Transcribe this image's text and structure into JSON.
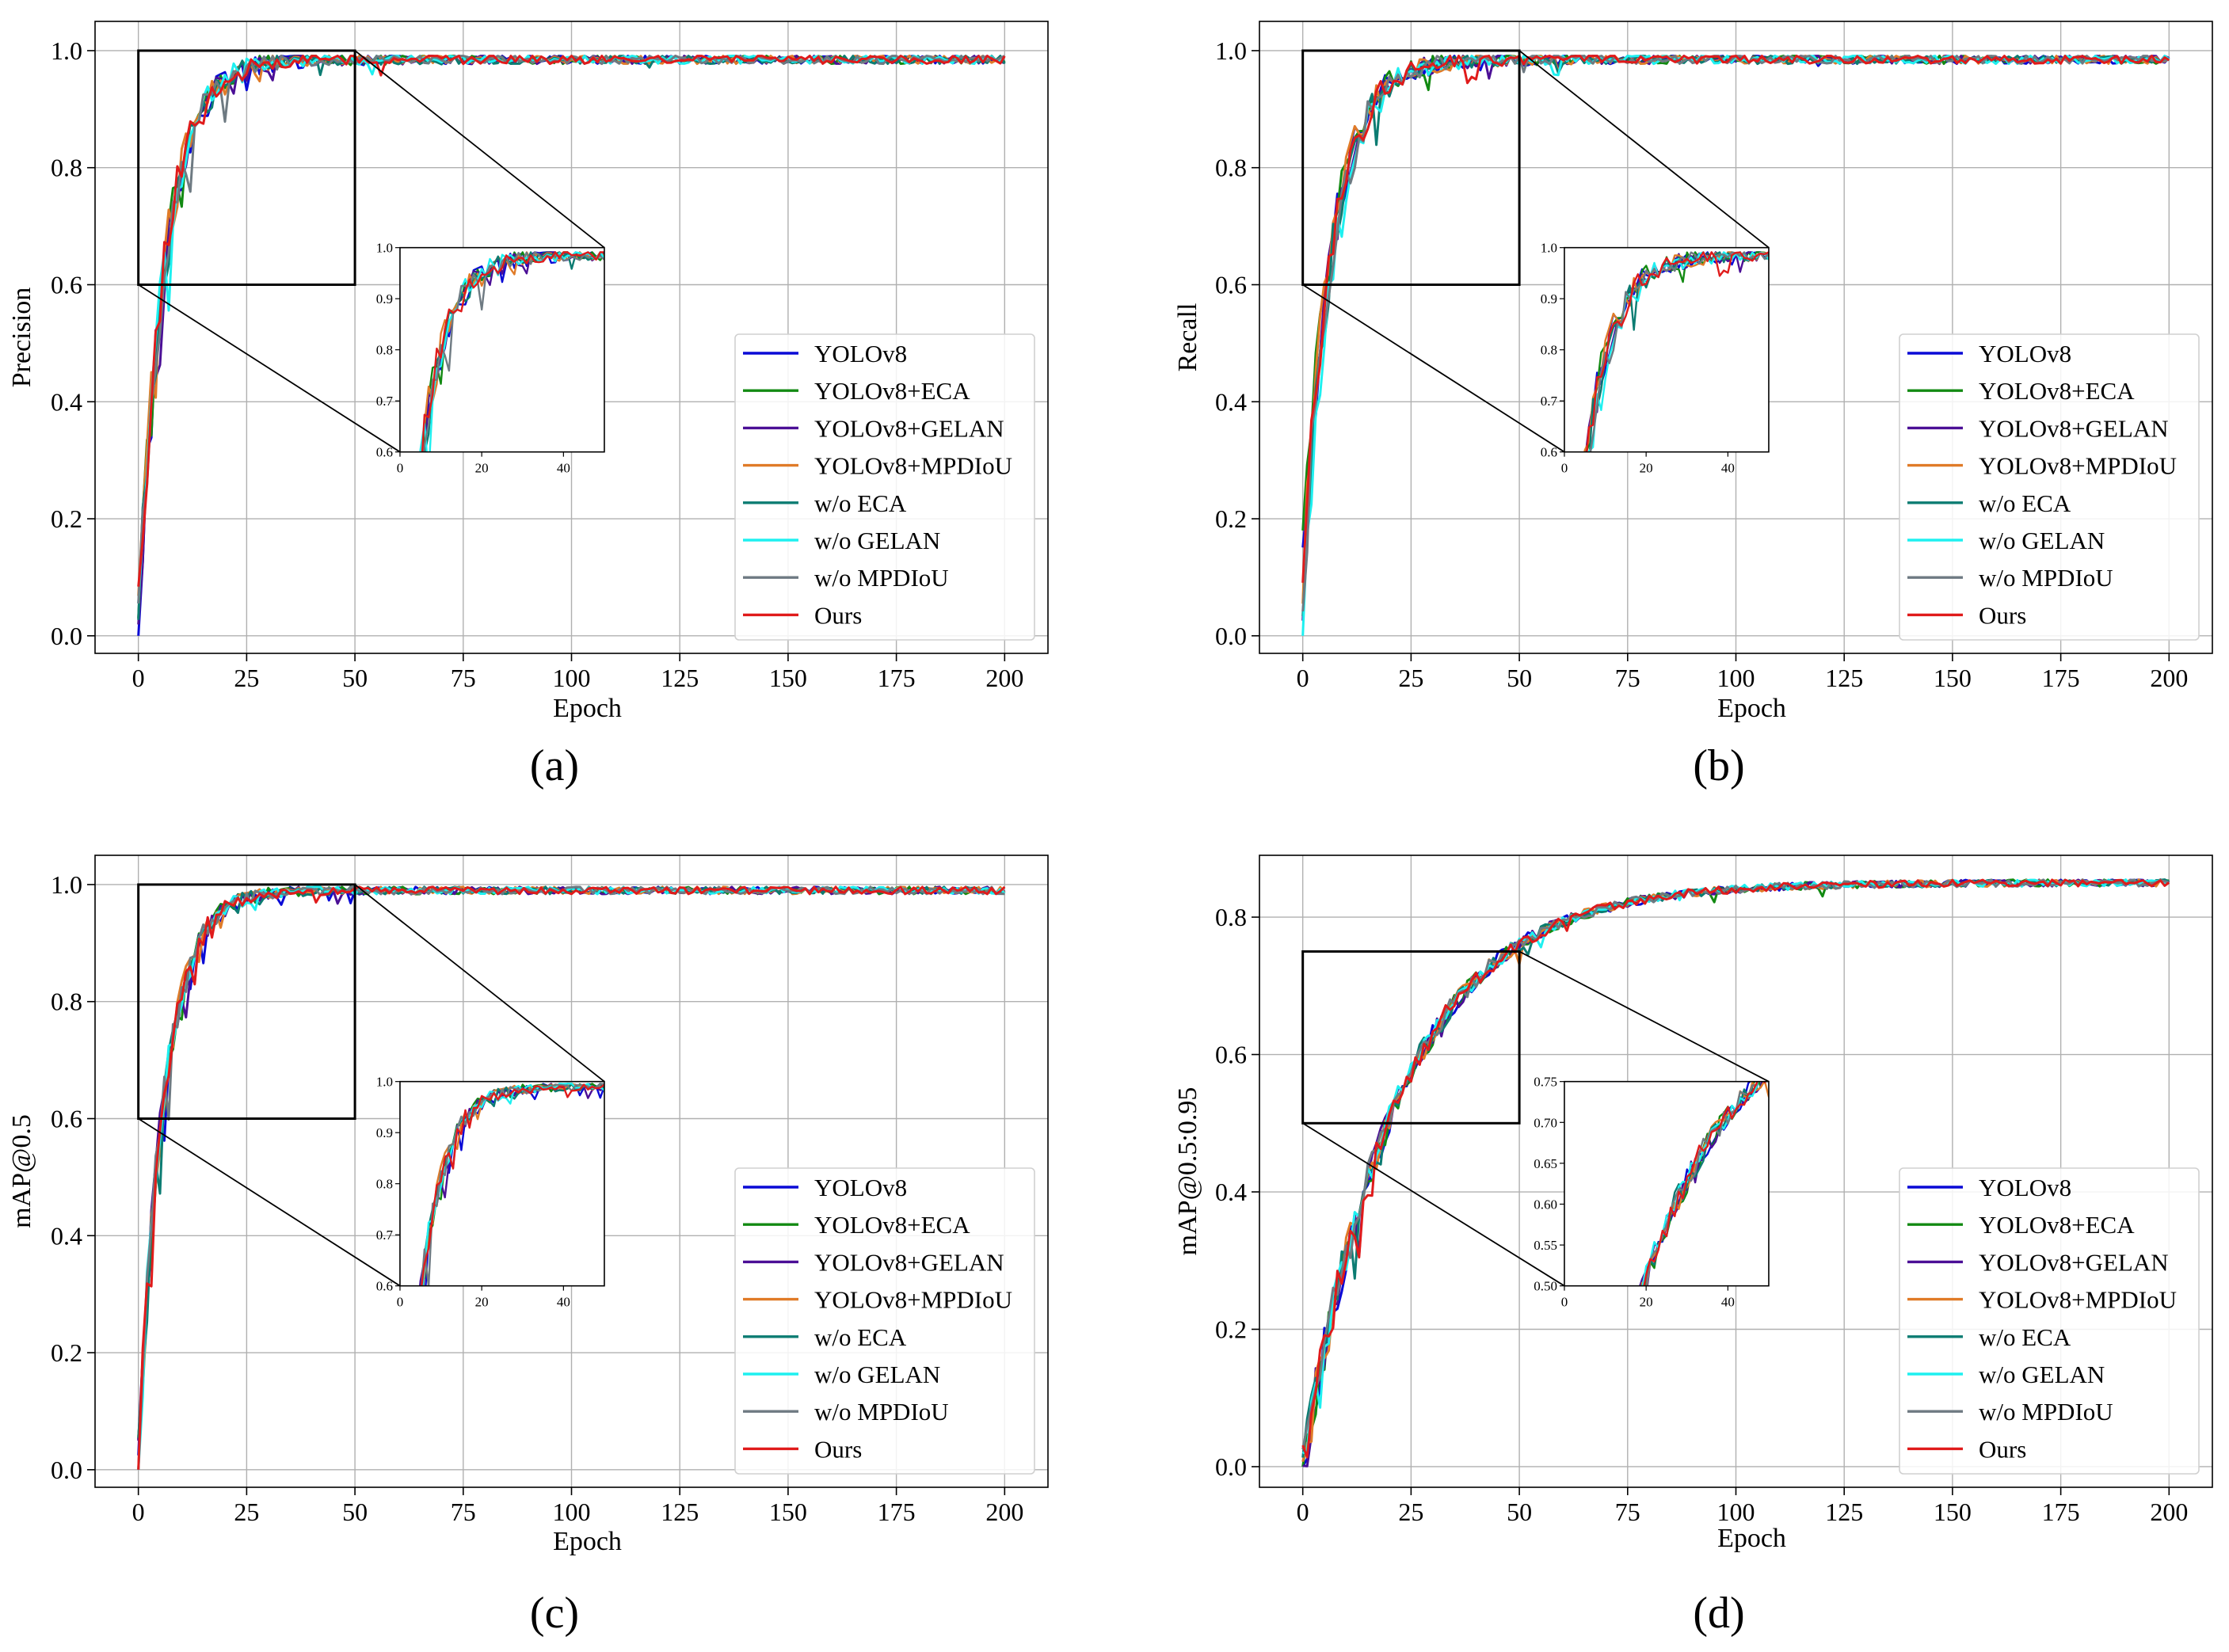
{
  "legend_entries": [
    "YOLOv8",
    "YOLOv8+ECA",
    "YOLOv8+GELAN",
    "YOLOv8+MPDIoU",
    "w/o ECA",
    "w/o GELAN",
    "w/o MPDIoU",
    "Ours"
  ],
  "series_colors": [
    "#0a0ad6",
    "#128a12",
    "#4b0f96",
    "#e07b28",
    "#0c7c72",
    "#1ef0f0",
    "#6e7a82",
    "#e01b1b"
  ],
  "chart_data": [
    {
      "id": "a",
      "type": "line",
      "caption": "(a)",
      "xlabel": "Epoch",
      "ylabel": "Precision",
      "xlim": [
        -10,
        210
      ],
      "ylim": [
        -0.03,
        1.05
      ],
      "xticks": [
        0,
        25,
        50,
        75,
        100,
        125,
        150,
        175,
        200
      ],
      "yticks": [
        0.0,
        0.2,
        0.4,
        0.6,
        0.8,
        1.0
      ],
      "ytick_labels": [
        "0.0",
        "0.2",
        "0.4",
        "0.6",
        "0.8",
        "1.0"
      ],
      "grid": true,
      "legend_loc": "lower-right",
      "zoom_region": {
        "x": [
          0,
          50
        ],
        "y": [
          0.6,
          1.0
        ]
      },
      "inset": {
        "xlim": [
          0,
          50
        ],
        "ylim": [
          0.6,
          1.0
        ],
        "xticks": [
          0,
          20,
          40
        ],
        "xtick_labels": [
          "0",
          "20",
          "40"
        ],
        "yticks": [
          0.6,
          0.7,
          0.8,
          0.9,
          1.0
        ],
        "ytick_labels": [
          "0.6",
          "0.7",
          "0.8",
          "0.9",
          "1.0"
        ]
      },
      "curve": {
        "start": 0.05,
        "plateau": 0.985,
        "k": 0.16,
        "noise": 0.03,
        "noise_decay": 16
      },
      "series": [
        {
          "name": "YOLOv8",
          "start": 0.02,
          "seed": 11
        },
        {
          "name": "YOLOv8+ECA",
          "start": 0.06,
          "seed": 12
        },
        {
          "name": "YOLOv8+GELAN",
          "start": 0.04,
          "seed": 13
        },
        {
          "name": "YOLOv8+MPDIoU",
          "start": 0.08,
          "seed": 14
        },
        {
          "name": "w/o ECA",
          "start": 0.03,
          "seed": 15
        },
        {
          "name": "w/o GELAN",
          "start": 0.05,
          "seed": 16
        },
        {
          "name": "w/o MPDIoU",
          "start": 0.04,
          "seed": 17
        },
        {
          "name": "Ours",
          "start": 0.06,
          "seed": 18
        }
      ]
    },
    {
      "id": "b",
      "type": "line",
      "caption": "(b)",
      "xlabel": "Epoch",
      "ylabel": "Recall",
      "xlim": [
        -10,
        210
      ],
      "ylim": [
        -0.03,
        1.05
      ],
      "xticks": [
        0,
        25,
        50,
        75,
        100,
        125,
        150,
        175,
        200
      ],
      "yticks": [
        0.0,
        0.2,
        0.4,
        0.6,
        0.8,
        1.0
      ],
      "ytick_labels": [
        "0.0",
        "0.2",
        "0.4",
        "0.6",
        "0.8",
        "1.0"
      ],
      "grid": true,
      "legend_loc": "lower-right",
      "zoom_region": {
        "x": [
          0,
          50
        ],
        "y": [
          0.6,
          1.0
        ]
      },
      "inset": {
        "xlim": [
          0,
          50
        ],
        "ylim": [
          0.6,
          1.0
        ],
        "xticks": [
          0,
          20,
          40
        ],
        "xtick_labels": [
          "0",
          "20",
          "40"
        ],
        "yticks": [
          0.6,
          0.7,
          0.8,
          0.9,
          1.0
        ],
        "ytick_labels": [
          "0.6",
          "0.7",
          "0.8",
          "0.9",
          "1.0"
        ]
      },
      "curve": {
        "start": 0.1,
        "plateau": 0.985,
        "k": 0.15,
        "noise": 0.03,
        "noise_decay": 16
      },
      "series": [
        {
          "name": "YOLOv8",
          "start": 0.1,
          "seed": 21
        },
        {
          "name": "YOLOv8+ECA",
          "start": 0.12,
          "seed": 22
        },
        {
          "name": "YOLOv8+GELAN",
          "start": 0.08,
          "seed": 23
        },
        {
          "name": "YOLOv8+MPDIoU",
          "start": 0.1,
          "seed": 24
        },
        {
          "name": "w/o ECA",
          "start": 0.07,
          "seed": 25
        },
        {
          "name": "w/o GELAN",
          "start": 0.02,
          "seed": 26
        },
        {
          "name": "w/o MPDIoU",
          "start": 0.06,
          "seed": 27
        },
        {
          "name": "Ours",
          "start": 0.1,
          "seed": 28
        }
      ]
    },
    {
      "id": "c",
      "type": "line",
      "caption": "(c)",
      "xlabel": "Epoch",
      "ylabel": "mAP@0.5",
      "xlim": [
        -10,
        210
      ],
      "ylim": [
        -0.03,
        1.05
      ],
      "xticks": [
        0,
        25,
        50,
        75,
        100,
        125,
        150,
        175,
        200
      ],
      "yticks": [
        0.0,
        0.2,
        0.4,
        0.6,
        0.8,
        1.0
      ],
      "ytick_labels": [
        "0.0",
        "0.2",
        "0.4",
        "0.6",
        "0.8",
        "1.0"
      ],
      "grid": true,
      "legend_loc": "lower-right",
      "zoom_region": {
        "x": [
          0,
          50
        ],
        "y": [
          0.6,
          1.0
        ]
      },
      "inset": {
        "xlim": [
          0,
          50
        ],
        "ylim": [
          0.6,
          1.0
        ],
        "xticks": [
          0,
          20,
          40
        ],
        "xtick_labels": [
          "0",
          "20",
          "40"
        ],
        "yticks": [
          0.6,
          0.7,
          0.8,
          0.9,
          1.0
        ],
        "ytick_labels": [
          "0.6",
          "0.7",
          "0.8",
          "0.9",
          "1.0"
        ]
      },
      "curve": {
        "start": 0.02,
        "plateau": 0.99,
        "k": 0.17,
        "noise": 0.025,
        "noise_decay": 12
      },
      "series": [
        {
          "name": "YOLOv8",
          "start": 0.01,
          "seed": 31
        },
        {
          "name": "YOLOv8+ECA",
          "start": 0.03,
          "seed": 32
        },
        {
          "name": "YOLOv8+GELAN",
          "start": 0.02,
          "seed": 33
        },
        {
          "name": "YOLOv8+MPDIoU",
          "start": 0.02,
          "seed": 34
        },
        {
          "name": "w/o ECA",
          "start": 0.01,
          "seed": 35
        },
        {
          "name": "w/o GELAN",
          "start": 0.02,
          "seed": 36
        },
        {
          "name": "w/o MPDIoU",
          "start": 0.02,
          "seed": 37
        },
        {
          "name": "Ours",
          "start": 0.02,
          "seed": 38
        }
      ]
    },
    {
      "id": "d",
      "type": "line",
      "caption": "(d)",
      "xlabel": "Epoch",
      "ylabel": "mAP@0.5:0.95",
      "xlim": [
        -10,
        210
      ],
      "ylim": [
        -0.03,
        0.89
      ],
      "xticks": [
        0,
        25,
        50,
        75,
        100,
        125,
        150,
        175,
        200
      ],
      "yticks": [
        0.0,
        0.2,
        0.4,
        0.6,
        0.8
      ],
      "ytick_labels": [
        "0.0",
        "0.2",
        "0.4",
        "0.6",
        "0.8"
      ],
      "grid": true,
      "legend_loc": "lower-right",
      "zoom_region": {
        "x": [
          0,
          50
        ],
        "y": [
          0.5,
          0.75
        ]
      },
      "inset": {
        "xlim": [
          0,
          50
        ],
        "ylim": [
          0.5,
          0.75
        ],
        "xticks": [
          0,
          20,
          40
        ],
        "xtick_labels": [
          "0",
          "20",
          "40"
        ],
        "yticks": [
          0.5,
          0.55,
          0.6,
          0.65,
          0.7,
          0.75
        ],
        "ytick_labels": [
          "0.50",
          "0.55",
          "0.60",
          "0.65",
          "0.70",
          "0.75"
        ]
      },
      "curve": {
        "start": 0.0,
        "plateau": 0.85,
        "k": 0.045,
        "noise": 0.02,
        "noise_decay": 25
      },
      "series": [
        {
          "name": "YOLOv8",
          "start": 0.0,
          "seed": 41
        },
        {
          "name": "YOLOv8+ECA",
          "start": 0.0,
          "seed": 42
        },
        {
          "name": "YOLOv8+GELAN",
          "start": 0.0,
          "seed": 43
        },
        {
          "name": "YOLOv8+MPDIoU",
          "start": 0.0,
          "seed": 44
        },
        {
          "name": "w/o ECA",
          "start": 0.0,
          "seed": 45
        },
        {
          "name": "w/o GELAN",
          "start": 0.0,
          "seed": 46
        },
        {
          "name": "w/o MPDIoU",
          "start": 0.0,
          "seed": 47
        },
        {
          "name": "Ours",
          "start": 0.0,
          "seed": 48
        }
      ]
    }
  ]
}
